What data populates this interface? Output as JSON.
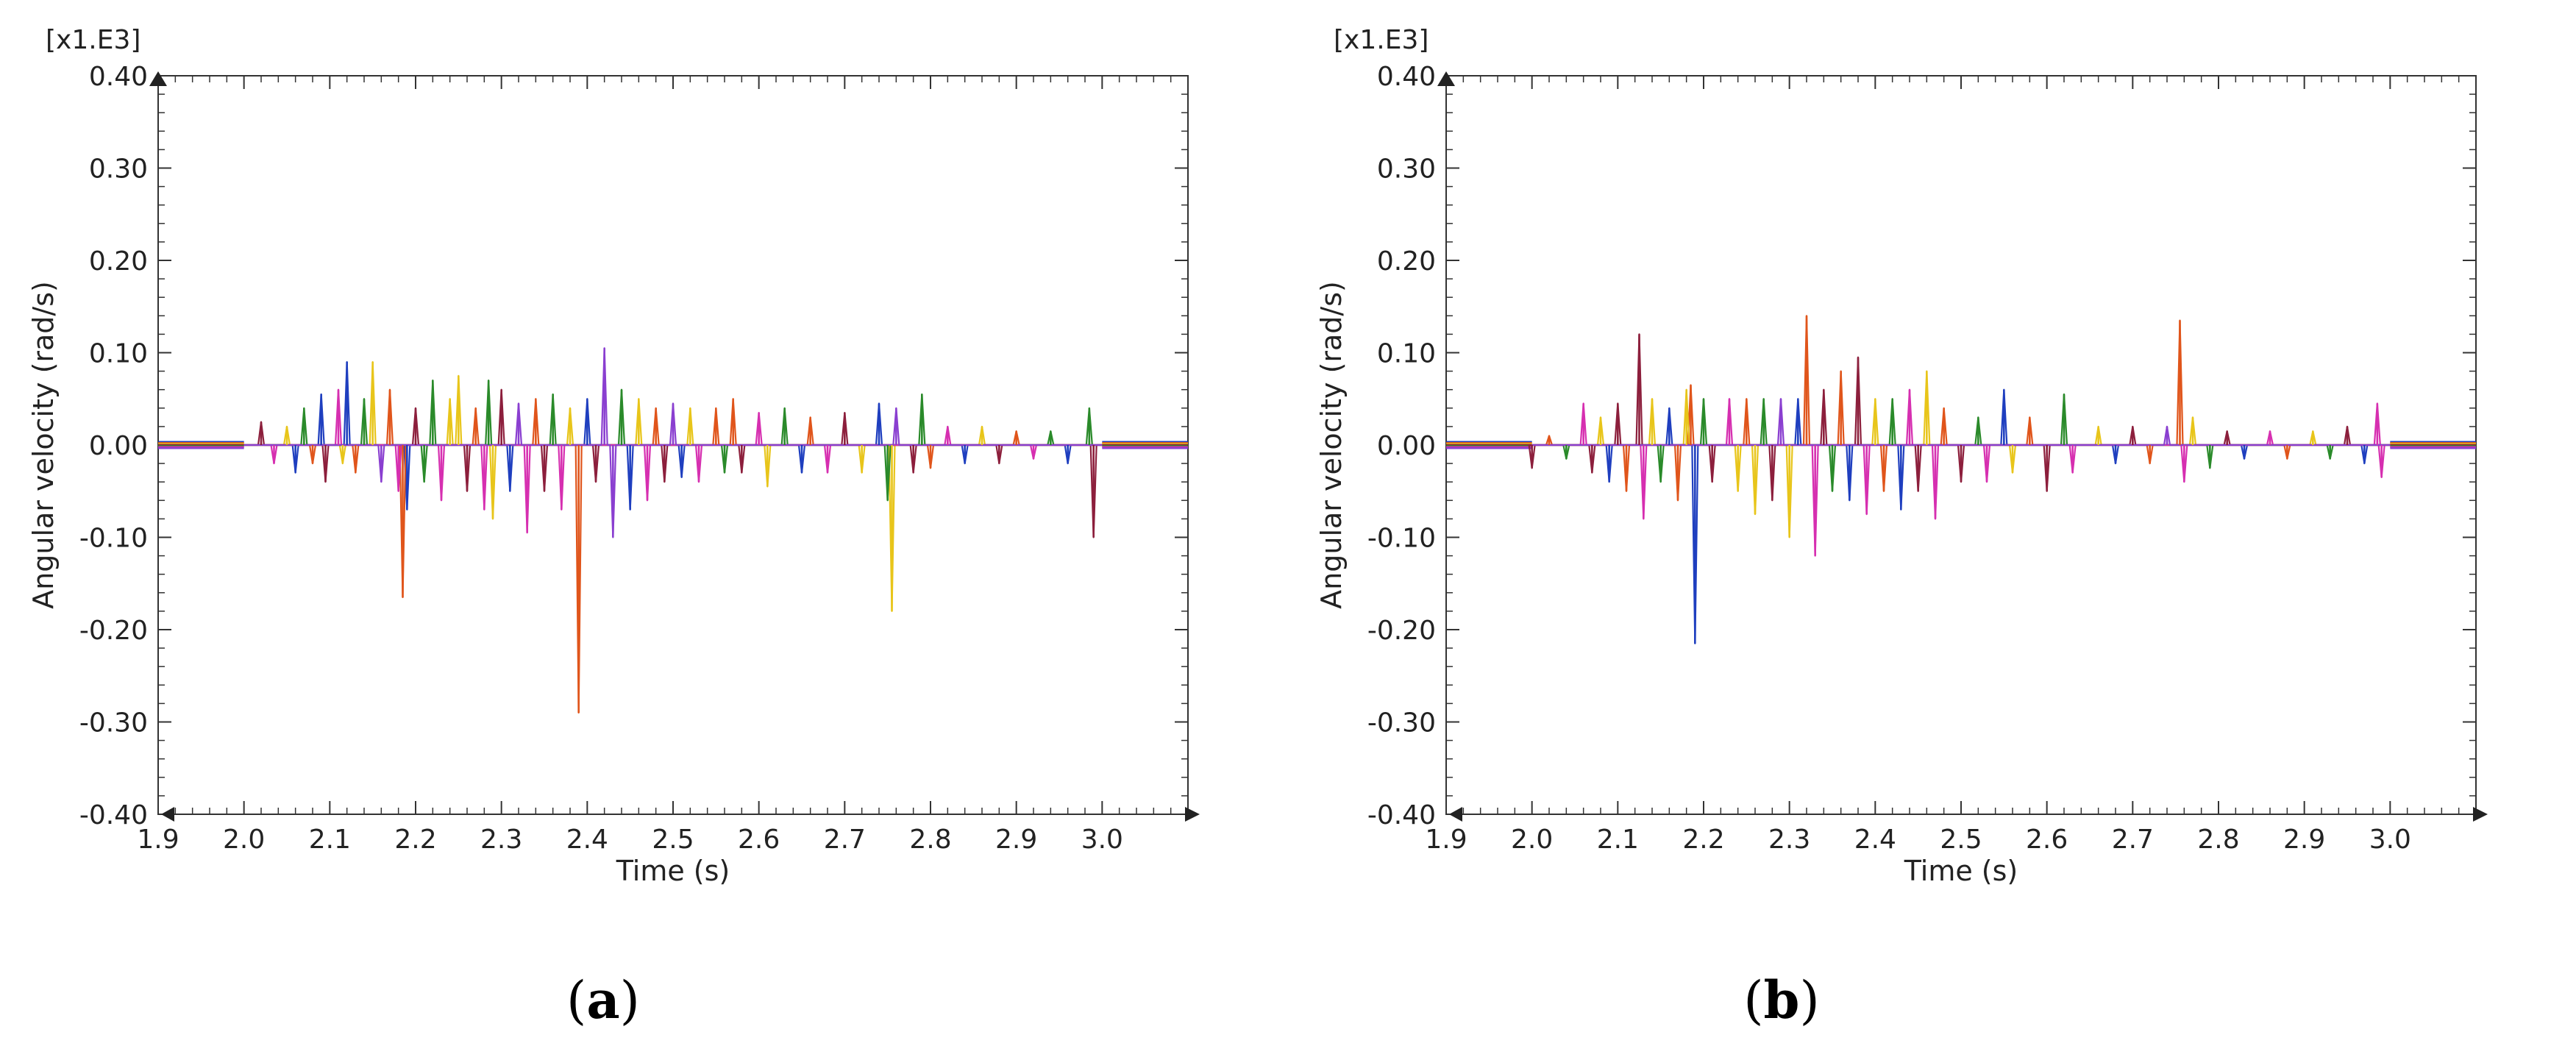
{
  "chart_data": [
    {
      "type": "line",
      "panel": "a",
      "caption_open": "(",
      "caption_letter": "a",
      "caption_close": ")",
      "multiplier_label": "[x1.E3]",
      "xlabel": "Time (s)",
      "ylabel": "Angular velocity (rad/s)",
      "xlim": [
        1.9,
        3.1
      ],
      "ylim": [
        -0.4,
        0.4
      ],
      "x_ticks": [
        "1.9",
        "2.0",
        "2.1",
        "2.2",
        "2.3",
        "2.4",
        "2.5",
        "2.6",
        "2.7",
        "2.8",
        "2.9",
        "3.0"
      ],
      "y_ticks": [
        "0.40",
        "0.30",
        "0.20",
        "0.10",
        "0.00",
        "-0.10",
        "-0.20",
        "-0.30",
        "-0.40"
      ],
      "colors": [
        "#1f3fbf",
        "#e0551b",
        "#e8c51a",
        "#8c1f3c",
        "#2a8a2a",
        "#d62fb0",
        "#8a3fd0"
      ],
      "spikes": [
        {
          "x": 2.02,
          "y": 0.025,
          "c": 3
        },
        {
          "x": 2.035,
          "y": -0.02,
          "c": 5
        },
        {
          "x": 2.05,
          "y": 0.02,
          "c": 2
        },
        {
          "x": 2.06,
          "y": -0.03,
          "c": 0
        },
        {
          "x": 2.07,
          "y": 0.04,
          "c": 4
        },
        {
          "x": 2.08,
          "y": -0.02,
          "c": 1
        },
        {
          "x": 2.09,
          "y": 0.055,
          "c": 0
        },
        {
          "x": 2.095,
          "y": -0.04,
          "c": 3
        },
        {
          "x": 2.11,
          "y": 0.06,
          "c": 5
        },
        {
          "x": 2.115,
          "y": -0.02,
          "c": 2
        },
        {
          "x": 2.12,
          "y": 0.09,
          "c": 0
        },
        {
          "x": 2.13,
          "y": -0.03,
          "c": 1
        },
        {
          "x": 2.14,
          "y": 0.05,
          "c": 4
        },
        {
          "x": 2.15,
          "y": 0.09,
          "c": 2
        },
        {
          "x": 2.16,
          "y": -0.04,
          "c": 6
        },
        {
          "x": 2.17,
          "y": 0.06,
          "c": 1
        },
        {
          "x": 2.18,
          "y": -0.05,
          "c": 5
        },
        {
          "x": 2.185,
          "y": -0.165,
          "c": 1
        },
        {
          "x": 2.19,
          "y": -0.07,
          "c": 0
        },
        {
          "x": 2.2,
          "y": 0.04,
          "c": 3
        },
        {
          "x": 2.21,
          "y": -0.04,
          "c": 4
        },
        {
          "x": 2.22,
          "y": 0.07,
          "c": 4
        },
        {
          "x": 2.23,
          "y": -0.06,
          "c": 5
        },
        {
          "x": 2.24,
          "y": 0.05,
          "c": 2
        },
        {
          "x": 2.25,
          "y": 0.075,
          "c": 2
        },
        {
          "x": 2.26,
          "y": -0.05,
          "c": 3
        },
        {
          "x": 2.27,
          "y": 0.04,
          "c": 1
        },
        {
          "x": 2.28,
          "y": -0.07,
          "c": 5
        },
        {
          "x": 2.285,
          "y": 0.07,
          "c": 4
        },
        {
          "x": 2.29,
          "y": -0.08,
          "c": 2
        },
        {
          "x": 2.3,
          "y": 0.06,
          "c": 3
        },
        {
          "x": 2.31,
          "y": -0.05,
          "c": 0
        },
        {
          "x": 2.32,
          "y": 0.045,
          "c": 6
        },
        {
          "x": 2.33,
          "y": -0.095,
          "c": 5
        },
        {
          "x": 2.34,
          "y": 0.05,
          "c": 1
        },
        {
          "x": 2.35,
          "y": -0.05,
          "c": 3
        },
        {
          "x": 2.36,
          "y": 0.055,
          "c": 4
        },
        {
          "x": 2.37,
          "y": -0.07,
          "c": 5
        },
        {
          "x": 2.38,
          "y": 0.04,
          "c": 2
        },
        {
          "x": 2.39,
          "y": -0.29,
          "c": 1
        },
        {
          "x": 2.4,
          "y": 0.05,
          "c": 0
        },
        {
          "x": 2.41,
          "y": -0.04,
          "c": 3
        },
        {
          "x": 2.42,
          "y": 0.105,
          "c": 6
        },
        {
          "x": 2.43,
          "y": -0.1,
          "c": 6
        },
        {
          "x": 2.44,
          "y": 0.06,
          "c": 4
        },
        {
          "x": 2.45,
          "y": -0.07,
          "c": 0
        },
        {
          "x": 2.46,
          "y": 0.05,
          "c": 2
        },
        {
          "x": 2.47,
          "y": -0.06,
          "c": 5
        },
        {
          "x": 2.48,
          "y": 0.04,
          "c": 1
        },
        {
          "x": 2.49,
          "y": -0.04,
          "c": 3
        },
        {
          "x": 2.5,
          "y": 0.045,
          "c": 6
        },
        {
          "x": 2.51,
          "y": -0.035,
          "c": 0
        },
        {
          "x": 2.52,
          "y": 0.04,
          "c": 2
        },
        {
          "x": 2.53,
          "y": -0.04,
          "c": 5
        },
        {
          "x": 2.55,
          "y": 0.04,
          "c": 1
        },
        {
          "x": 2.56,
          "y": -0.03,
          "c": 4
        },
        {
          "x": 2.57,
          "y": 0.05,
          "c": 1
        },
        {
          "x": 2.58,
          "y": -0.03,
          "c": 3
        },
        {
          "x": 2.6,
          "y": 0.035,
          "c": 5
        },
        {
          "x": 2.61,
          "y": -0.045,
          "c": 2
        },
        {
          "x": 2.63,
          "y": 0.04,
          "c": 4
        },
        {
          "x": 2.65,
          "y": -0.03,
          "c": 0
        },
        {
          "x": 2.66,
          "y": 0.03,
          "c": 1
        },
        {
          "x": 2.68,
          "y": -0.03,
          "c": 5
        },
        {
          "x": 2.7,
          "y": 0.035,
          "c": 3
        },
        {
          "x": 2.72,
          "y": -0.03,
          "c": 2
        },
        {
          "x": 2.74,
          "y": 0.045,
          "c": 0
        },
        {
          "x": 2.75,
          "y": -0.06,
          "c": 4
        },
        {
          "x": 2.755,
          "y": -0.18,
          "c": 2
        },
        {
          "x": 2.76,
          "y": 0.04,
          "c": 6
        },
        {
          "x": 2.78,
          "y": -0.03,
          "c": 3
        },
        {
          "x": 2.79,
          "y": 0.055,
          "c": 4
        },
        {
          "x": 2.8,
          "y": -0.025,
          "c": 1
        },
        {
          "x": 2.82,
          "y": 0.02,
          "c": 5
        },
        {
          "x": 2.84,
          "y": -0.02,
          "c": 0
        },
        {
          "x": 2.86,
          "y": 0.02,
          "c": 2
        },
        {
          "x": 2.88,
          "y": -0.02,
          "c": 3
        },
        {
          "x": 2.9,
          "y": 0.015,
          "c": 1
        },
        {
          "x": 2.92,
          "y": -0.015,
          "c": 5
        },
        {
          "x": 2.94,
          "y": 0.015,
          "c": 4
        },
        {
          "x": 2.96,
          "y": -0.02,
          "c": 0
        },
        {
          "x": 2.985,
          "y": 0.04,
          "c": 4
        },
        {
          "x": 2.99,
          "y": -0.1,
          "c": 3
        }
      ]
    },
    {
      "type": "line",
      "panel": "b",
      "caption_open": "(",
      "caption_letter": "b",
      "caption_close": ")",
      "multiplier_label": "[x1.E3]",
      "xlabel": "Time (s)",
      "ylabel": "Angular velocity (rad/s)",
      "xlim": [
        1.9,
        3.1
      ],
      "ylim": [
        -0.4,
        0.4
      ],
      "x_ticks": [
        "1.9",
        "2.0",
        "2.1",
        "2.2",
        "2.3",
        "2.4",
        "2.5",
        "2.6",
        "2.7",
        "2.8",
        "2.9",
        "3.0"
      ],
      "y_ticks": [
        "0.40",
        "0.30",
        "0.20",
        "0.10",
        "0.00",
        "-0.10",
        "-0.20",
        "-0.30",
        "-0.40"
      ],
      "colors": [
        "#1f3fbf",
        "#e0551b",
        "#e8c51a",
        "#8c1f3c",
        "#2a8a2a",
        "#d62fb0",
        "#8a3fd0"
      ],
      "spikes": [
        {
          "x": 2.0,
          "y": -0.025,
          "c": 3
        },
        {
          "x": 2.02,
          "y": 0.01,
          "c": 1
        },
        {
          "x": 2.04,
          "y": -0.015,
          "c": 4
        },
        {
          "x": 2.06,
          "y": 0.045,
          "c": 5
        },
        {
          "x": 2.07,
          "y": -0.03,
          "c": 3
        },
        {
          "x": 2.08,
          "y": 0.03,
          "c": 2
        },
        {
          "x": 2.09,
          "y": -0.04,
          "c": 0
        },
        {
          "x": 2.1,
          "y": 0.045,
          "c": 3
        },
        {
          "x": 2.11,
          "y": -0.05,
          "c": 1
        },
        {
          "x": 2.125,
          "y": 0.12,
          "c": 3
        },
        {
          "x": 2.13,
          "y": -0.08,
          "c": 5
        },
        {
          "x": 2.14,
          "y": 0.05,
          "c": 2
        },
        {
          "x": 2.15,
          "y": -0.04,
          "c": 4
        },
        {
          "x": 2.16,
          "y": 0.04,
          "c": 0
        },
        {
          "x": 2.17,
          "y": -0.06,
          "c": 1
        },
        {
          "x": 2.18,
          "y": 0.06,
          "c": 2
        },
        {
          "x": 2.185,
          "y": 0.065,
          "c": 1
        },
        {
          "x": 2.19,
          "y": -0.215,
          "c": 0
        },
        {
          "x": 2.2,
          "y": 0.05,
          "c": 4
        },
        {
          "x": 2.21,
          "y": -0.04,
          "c": 3
        },
        {
          "x": 2.23,
          "y": 0.05,
          "c": 5
        },
        {
          "x": 2.24,
          "y": -0.05,
          "c": 2
        },
        {
          "x": 2.25,
          "y": 0.05,
          "c": 1
        },
        {
          "x": 2.26,
          "y": -0.075,
          "c": 2
        },
        {
          "x": 2.27,
          "y": 0.05,
          "c": 4
        },
        {
          "x": 2.28,
          "y": -0.06,
          "c": 3
        },
        {
          "x": 2.29,
          "y": 0.05,
          "c": 6
        },
        {
          "x": 2.3,
          "y": -0.1,
          "c": 2
        },
        {
          "x": 2.31,
          "y": 0.05,
          "c": 0
        },
        {
          "x": 2.32,
          "y": 0.14,
          "c": 1
        },
        {
          "x": 2.33,
          "y": -0.12,
          "c": 5
        },
        {
          "x": 2.34,
          "y": 0.06,
          "c": 3
        },
        {
          "x": 2.35,
          "y": -0.05,
          "c": 4
        },
        {
          "x": 2.36,
          "y": 0.08,
          "c": 1
        },
        {
          "x": 2.37,
          "y": -0.06,
          "c": 0
        },
        {
          "x": 2.38,
          "y": 0.095,
          "c": 3
        },
        {
          "x": 2.39,
          "y": -0.075,
          "c": 5
        },
        {
          "x": 2.4,
          "y": 0.05,
          "c": 2
        },
        {
          "x": 2.41,
          "y": -0.05,
          "c": 1
        },
        {
          "x": 2.42,
          "y": 0.05,
          "c": 4
        },
        {
          "x": 2.43,
          "y": -0.07,
          "c": 0
        },
        {
          "x": 2.44,
          "y": 0.06,
          "c": 5
        },
        {
          "x": 2.45,
          "y": -0.05,
          "c": 3
        },
        {
          "x": 2.46,
          "y": 0.08,
          "c": 2
        },
        {
          "x": 2.47,
          "y": -0.08,
          "c": 5
        },
        {
          "x": 2.48,
          "y": 0.04,
          "c": 1
        },
        {
          "x": 2.5,
          "y": -0.04,
          "c": 3
        },
        {
          "x": 2.52,
          "y": 0.03,
          "c": 4
        },
        {
          "x": 2.53,
          "y": -0.04,
          "c": 5
        },
        {
          "x": 2.55,
          "y": 0.06,
          "c": 0
        },
        {
          "x": 2.56,
          "y": -0.03,
          "c": 2
        },
        {
          "x": 2.58,
          "y": 0.03,
          "c": 1
        },
        {
          "x": 2.6,
          "y": -0.05,
          "c": 3
        },
        {
          "x": 2.62,
          "y": 0.055,
          "c": 4
        },
        {
          "x": 2.63,
          "y": -0.03,
          "c": 5
        },
        {
          "x": 2.66,
          "y": 0.02,
          "c": 2
        },
        {
          "x": 2.68,
          "y": -0.02,
          "c": 0
        },
        {
          "x": 2.7,
          "y": 0.02,
          "c": 3
        },
        {
          "x": 2.72,
          "y": -0.02,
          "c": 1
        },
        {
          "x": 2.74,
          "y": 0.02,
          "c": 6
        },
        {
          "x": 2.755,
          "y": 0.135,
          "c": 1
        },
        {
          "x": 2.76,
          "y": -0.04,
          "c": 5
        },
        {
          "x": 2.77,
          "y": 0.03,
          "c": 2
        },
        {
          "x": 2.79,
          "y": -0.025,
          "c": 4
        },
        {
          "x": 2.81,
          "y": 0.015,
          "c": 3
        },
        {
          "x": 2.83,
          "y": -0.015,
          "c": 0
        },
        {
          "x": 2.86,
          "y": 0.015,
          "c": 5
        },
        {
          "x": 2.88,
          "y": -0.015,
          "c": 1
        },
        {
          "x": 2.91,
          "y": 0.015,
          "c": 2
        },
        {
          "x": 2.93,
          "y": -0.015,
          "c": 4
        },
        {
          "x": 2.95,
          "y": 0.02,
          "c": 3
        },
        {
          "x": 2.97,
          "y": -0.02,
          "c": 0
        },
        {
          "x": 2.985,
          "y": 0.045,
          "c": 5
        },
        {
          "x": 2.99,
          "y": -0.035,
          "c": 5
        }
      ]
    }
  ]
}
